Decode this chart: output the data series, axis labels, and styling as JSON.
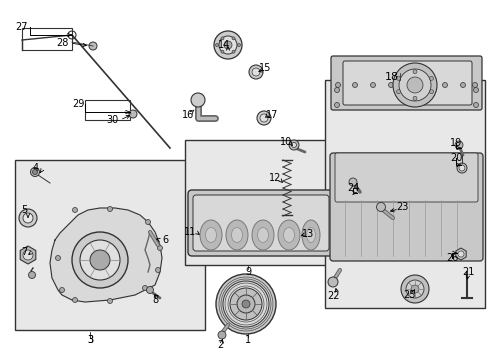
{
  "bg_color": "#ffffff",
  "line_color": "#333333",
  "label_color": "#000000",
  "box_bg": "#e8e8e8",
  "box_edge": "#333333",
  "figsize": [
    4.89,
    3.6
  ],
  "dpi": 100
}
